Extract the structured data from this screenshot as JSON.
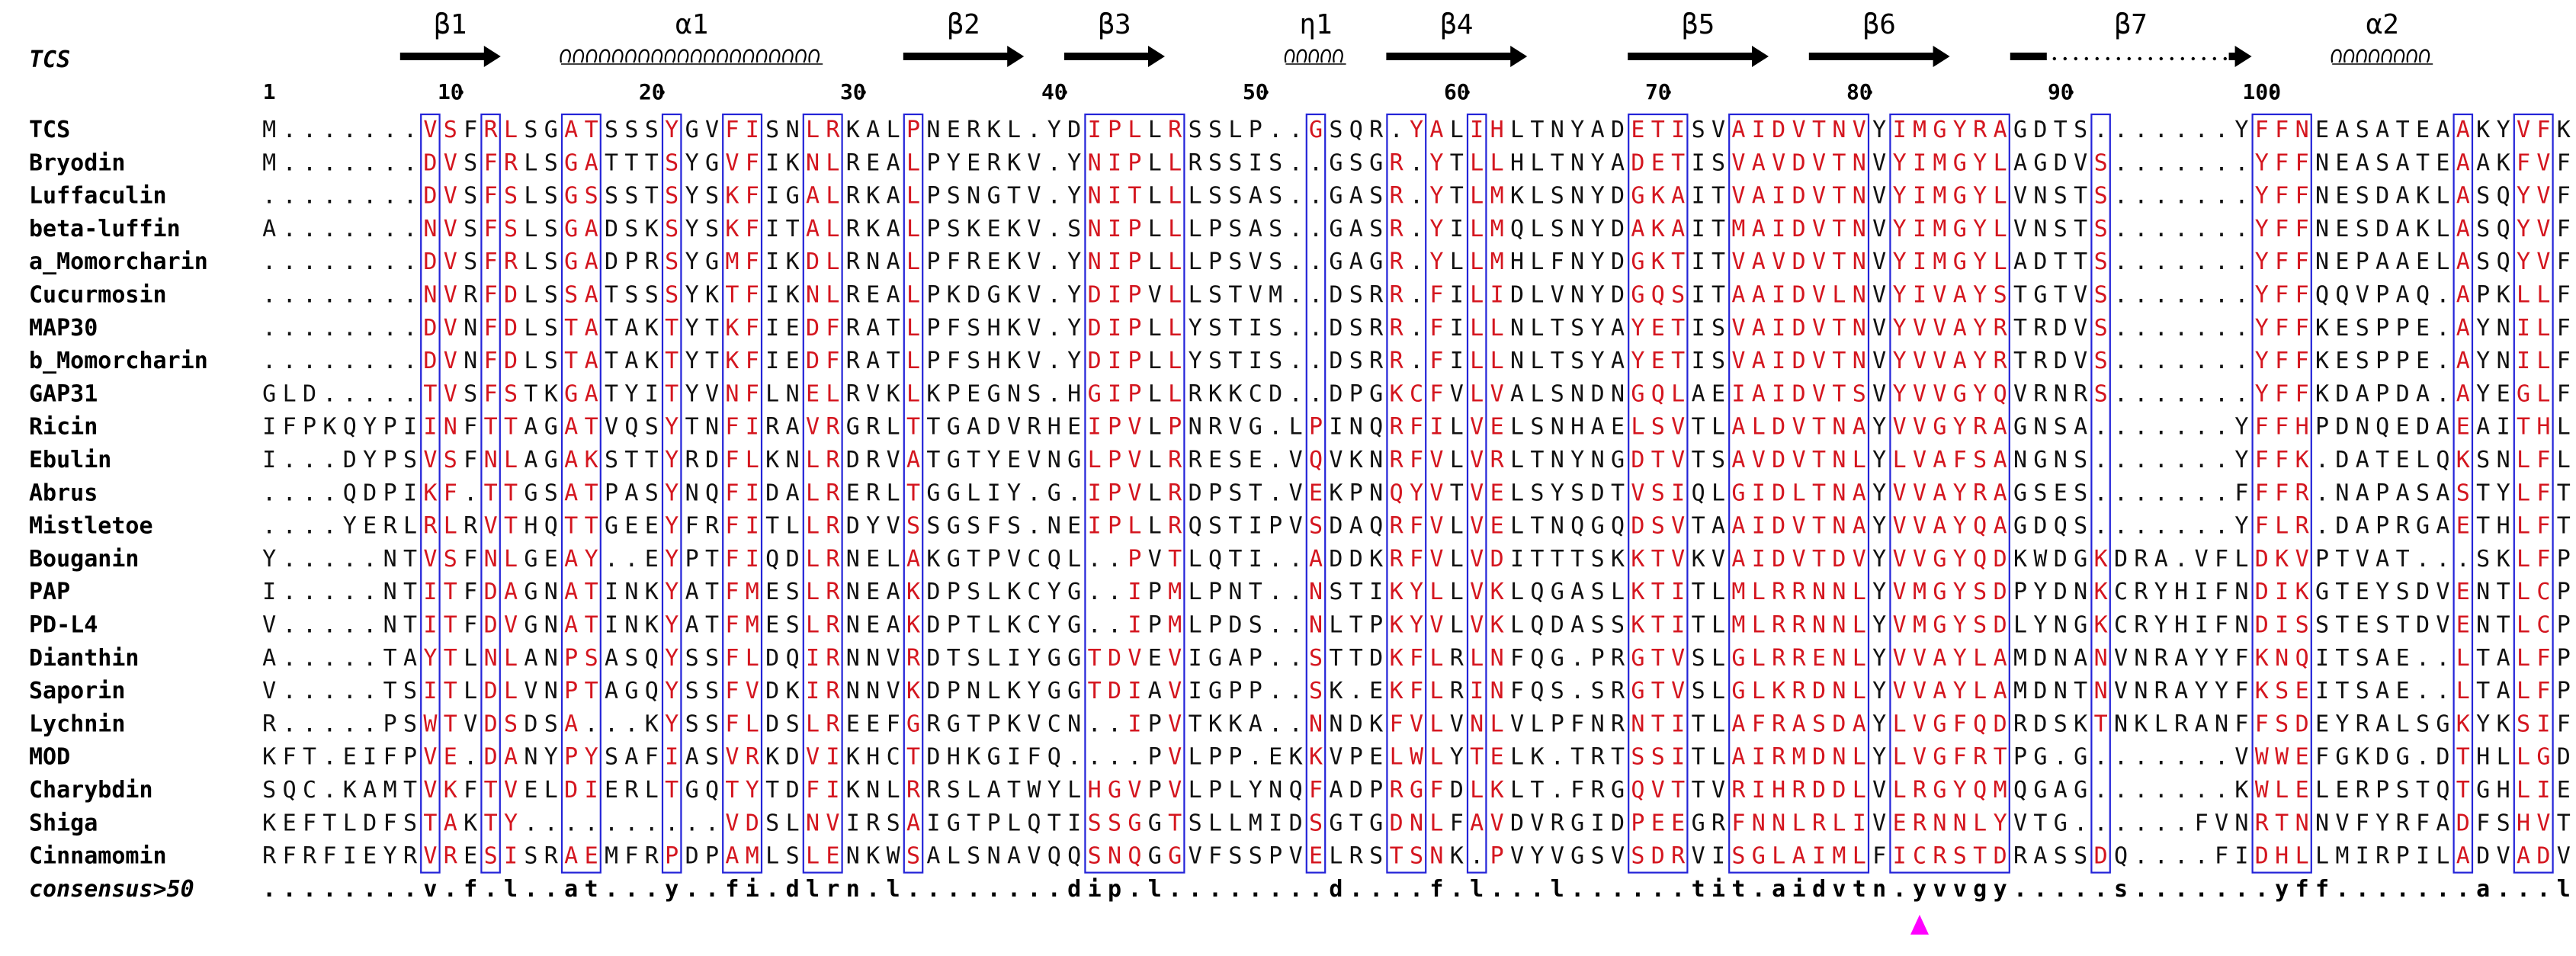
{
  "header_label": "TCS",
  "ruler": [
    {
      "pos": 1,
      "label": "1"
    },
    {
      "pos": 10,
      "label": "10"
    },
    {
      "pos": 20,
      "label": "20"
    },
    {
      "pos": 30,
      "label": "30"
    },
    {
      "pos": 40,
      "label": "40"
    },
    {
      "pos": 50,
      "label": "50"
    },
    {
      "pos": 60,
      "label": "60"
    },
    {
      "pos": 70,
      "label": "70"
    },
    {
      "pos": 80,
      "label": "80"
    },
    {
      "pos": 90,
      "label": "90"
    },
    {
      "pos": 100,
      "label": "100"
    }
  ],
  "secondary_structure": [
    {
      "type": "strand",
      "label": "β1",
      "start": 8,
      "end": 12
    },
    {
      "type": "helix",
      "label": "α1",
      "start": 16,
      "end": 28
    },
    {
      "type": "strand",
      "label": "β2",
      "start": 33,
      "end": 38
    },
    {
      "type": "strand",
      "label": "β3",
      "start": 41,
      "end": 45
    },
    {
      "type": "helix",
      "label": "η1",
      "start": 52,
      "end": 54
    },
    {
      "type": "strand",
      "label": "β4",
      "start": 57,
      "end": 63
    },
    {
      "type": "strand",
      "label": "β5",
      "start": 69,
      "end": 75
    },
    {
      "type": "strand",
      "label": "β6",
      "start": 78,
      "end": 84
    },
    {
      "type": "strand-dotted",
      "label": "β7",
      "start": 88,
      "end": 99
    },
    {
      "type": "helix",
      "label": "α2",
      "start": 104,
      "end": 108
    }
  ],
  "sequences": [
    {
      "name": "TCS",
      "seq": "M.......VSFRLSGATSSSYGVFISNLRKALPNERKL.YDIPLLRSSLP..GSQR.YALIHLTNYADETISVAIDVTNVYIMGYRAGDTS.......YFFNEASATEAAKYVFKDA..M"
    },
    {
      "name": "Bryodin",
      "seq": "M.......DVSFRLSGATTTSYGVFIKNLREALPYERKV.YNIPLLRSSIS..GSGR.YTLLHLTNYADETISVAVDVTNVYIMGYLAGDVS.......YFFNEASATEAAKFVFKDA..K"
    },
    {
      "name": "Luffaculin",
      "seq": "........DVSFSLSGSSSTSYSKFIGALRKALPSNGTV.YNITLLLSSAS..GASR.YTLMKLSNYDGKAITVAIDVTNVYIMGYLVNSTS.......YFFNESDAKLASQYVFAGS..T"
    },
    {
      "name": "beta-luffin",
      "seq": "A.......NVSFSLSGADSKSYSKFITALRKALPSKEKV.SNIPLLLPSAS..GASR.YILMQLSNYDAKAITMAIDVTNVYIMGYLVNSTS.......YFFNESDAKLASQYVFKGS..T"
    },
    {
      "name": "a_Momorcharin",
      "seq": "........DVSFRLSGADPRSYGMFIKDLRNALPFREKV.YNIPLLLPSVS..GAGR.YLLMHLFNYDGKTITVAVDVTNVYIMGYLADTTS.......YFFNEPAAELASQYVFRDA..R"
    },
    {
      "name": "Cucurmosin",
      "seq": "........NVRFDLSSATSSSYKTFIKNLREALPKDGKV.YDIPVLLSTVM..DSRR.FILIDLVNYDGQSITAAIDVLNVYIVAYSTGTVS.......YFFQQVPAQ.APKLLFKG..T"
    },
    {
      "name": "MAP30",
      "seq": "........DVNFDLSTATAKTYTKFIEDFRATLPFSHKV.YDIPLLYSTIS..DSRR.FILLNLTSYAYETISVAIDVTNVYVVAYRTRDVS.......YFFKESPPE.AYNILFKG..T"
    },
    {
      "name": "b_Momorcharin",
      "seq": "........DVNFDLSTATAKTYTKFIEDFRATLPFSHKV.YDIPLLYSTIS..DSRR.FILLNLTSYAYETISVAIDVTNVYVVAYRTRDVS.......YFFKESPPE.AYNILFKG..T"
    },
    {
      "name": "GAP31",
      "seq": "GLD.....TVSFSTKGATYITYVNFLNELRVKLKPEGNS.HGIPLLRKKCD..DPGKCFVLVALSNDNGQLAEIAIDVTSVYVVGYQVRNRS.......YFFKDAPDA.AYEGLFKN..T"
    },
    {
      "name": "Ricin",
      "seq": "IFPKQYPIINFTTAGATVQSYTNFIRAVRGRLTTGADVRHEIPVLPNRVG.LPINQRFILVELSNHAELSVTLALDVTNAYVVGYRAGNSA.......YFFHPDNQEDAEAITHLFTDVQ"
    },
    {
      "name": "Ebulin",
      "seq": "I...DYPSVSFNLAGAKSTTYRDFLKNLRDRVATGTYEVNGLPVLRRESE.VQVKNRFVLVRLTNYNGDTVTSAVDVTNLYLVAFSANGNS.......YFFK.DATELQKSNLFLGT..."
    },
    {
      "name": "Abrus",
      "seq": "....QDPIKF.TTGSATPASYNQFIDALRERLTGGLIY.G.IPVLRDPST.VEKPNQYVTVELSYSDTVSIQLGIDLTNAYVVAYRAGSES.......FFFR.NAPASASTYLFTGT..."
    },
    {
      "name": "Mistletoe",
      "seq": "....YERLRLRVTHQTTGEEYFRFITLLRDYVSSGSFS.NEIPLLRQSTIPVSDAQRFVLVELTNQGQDSVTAAIDVTNAYVVAYQAGDQS.......YFLR.DAPRGAETHLFTGT..."
    },
    {
      "name": "Bouganin",
      "seq": "Y.....NTVSFNLGEAY..EYPTFIQDLRNELAKGTPVCQL..PVTLQTI..ADDKRFVLVDITTTSKKTVKVAIDVTDVYVVGYQDKWDGKDRA.VFLDKVPTVAT...SKLFPGVTNR"
    },
    {
      "name": "PAP",
      "seq": "I.....NTITFDAGNATINKYATFMESLRNEAKDPSLKCYG..IPMLPNT..NSTIKYLLVKLQGASLKTITLMLRRNNLYVMGYSDPYDNKCRYHIFNDIKGTEYSDVENTLCPSSNPR"
    },
    {
      "name": "PD-L4",
      "seq": "V.....NTITFDVGNATINKYATFMESLRNEAKDPTLKCYG..IPMLPDS..NLTPKYVLVKLQDASSKTITLMLRRNNLYVMGYSDLYNGKCRYHIFNDISSTESTDVENTLCPNSNSR"
    },
    {
      "name": "Dianthin",
      "seq": "A.....TAYTLNLANPSASQYSSFLDQIRNNVRDTSLIYGGTDVEVIGAP..STTDKFLRLNFQG.PRGTVSLGLRRENLYVVAYLAMDNANVNRAYYFKNQITSAE..LTALFPEVVVA"
    },
    {
      "name": "Saporin",
      "seq": "V.....TSITLDLVNPTAGQYSSFVDKIRNNVKDPNLKYGGTDIAVIGPP..SK.EKFLRINFQS.SRGTVSLGLKRDNLYVVAYLAMDNTNVNRAYYFKSEITSAE..LTALFPEATTA"
    },
    {
      "name": "Lychnin",
      "seq": "R.....PSWTVDSDSA...KYSSFLDSLREEFGRGTPKVCN..IPVTKKA..NNDKFVLVNLVLPFNRNTITLAFRASDAYLVGFQDRDSKTNKLRANFFSDEYRALSGKYKSIFTDAEV"
    },
    {
      "name": "MOD",
      "seq": "KFT.EIFPVE.DANYPYSAFIASVRKDVIKHCTDHKGIFQ....PVLPP.EKKVPELWLYTELK.TRTSSITLAIRMDNLYLVGFRTPG.G.......VWWEFGKDG.DTHLLGDN...."
    },
    {
      "name": "Charybdin",
      "seq": "SQC.KAMTVKFTVELDIERLTGQTYTDFIKNLRRSLATWYLHGVPVLPLYNQFADPRGFDLKLT.FRGQVTTVRIHRDDLVLRGYQMQGAG.......KWLELERPSTQTGHLIEG...."
    },
    {
      "name": "Shiga",
      "seq": "KEFTLDFSTAKTY..........VDSLNVIRSAIGTPLQTISSGGTSLLMIDSGTGDNLFAVDVRGIDPEEGRFNNLRLIVERNNLYVTG......FVNRTNNVFYRFADFSHVTFPGT"
    },
    {
      "name": "Cinnamomin",
      "seq": "RFRFIEYRVRESISRAEMFRPDPAMLSLENKWSALSNAVQQSNQGGVFSSPVELRSTSNK.PVYVGSVSDRVISGLAIMLFICRSTDRASSDQ....FIDHLLMIRPILADVADVATDAD"
    }
  ],
  "consensus": {
    "name": "consensus>50",
    "seq": "........v.f.l..at...y..fi.dlrn.l........dip.l........d....f.l...l......tit.aidvtn.yvvgy.....s.......yff.......a...lf....."
  },
  "red_columns": [
    9,
    10,
    12,
    13,
    16,
    17,
    21,
    24,
    25,
    28,
    29,
    33,
    42,
    43,
    44,
    46,
    53,
    57,
    58,
    59,
    61,
    62,
    69,
    70,
    71,
    74,
    75,
    76,
    77,
    78,
    79,
    80,
    82,
    83,
    84,
    85,
    86,
    87,
    92,
    100,
    101,
    102,
    110,
    113,
    114
  ],
  "boxes": [
    {
      "start": 9,
      "end": 9
    },
    {
      "start": 12,
      "end": 12
    },
    {
      "start": 16,
      "end": 17
    },
    {
      "start": 21,
      "end": 21
    },
    {
      "start": 24,
      "end": 25
    },
    {
      "start": 28,
      "end": 29
    },
    {
      "start": 33,
      "end": 33
    },
    {
      "start": 42,
      "end": 46
    },
    {
      "start": 53,
      "end": 53
    },
    {
      "start": 57,
      "end": 58
    },
    {
      "start": 61,
      "end": 61
    },
    {
      "start": 69,
      "end": 71
    },
    {
      "start": 74,
      "end": 80
    },
    {
      "start": 82,
      "end": 87
    },
    {
      "start": 92,
      "end": 92
    },
    {
      "start": 100,
      "end": 102
    },
    {
      "start": 110,
      "end": 110
    },
    {
      "start": 113,
      "end": 114
    }
  ],
  "marker": {
    "column": 83,
    "shape": "triangle-up",
    "color": "#ff00ff"
  },
  "colors": {
    "identity_red": "#d4161f",
    "box_blue": "#2323d8",
    "text": "#111111",
    "marker": "#ff00ff"
  }
}
